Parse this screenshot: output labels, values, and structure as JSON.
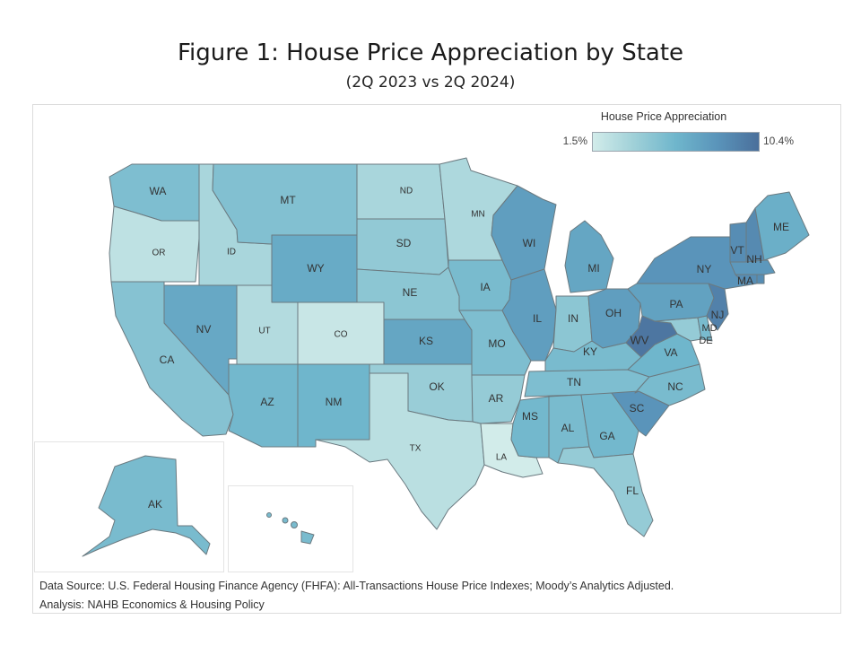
{
  "title": "Figure 1: House Price Appreciation by State",
  "subtitle": "(2Q 2023 vs 2Q 2024)",
  "legend": {
    "title": "House Price Appreciation",
    "min_label": "1.5%",
    "max_label": "10.4%",
    "min_value": 1.5,
    "max_value": 10.4,
    "color_low": "#d2ecea",
    "color_high": "#4a6f9b"
  },
  "states": [
    {
      "abbr": "WA",
      "level": 0.42
    },
    {
      "abbr": "OR",
      "level": 0.1
    },
    {
      "abbr": "CA",
      "level": 0.38
    },
    {
      "abbr": "ID",
      "level": 0.2
    },
    {
      "abbr": "NV",
      "level": 0.6
    },
    {
      "abbr": "MT",
      "level": 0.4
    },
    {
      "abbr": "WY",
      "level": 0.58
    },
    {
      "abbr": "UT",
      "level": 0.15
    },
    {
      "abbr": "AZ",
      "level": 0.48
    },
    {
      "abbr": "CO",
      "level": 0.05
    },
    {
      "abbr": "NM",
      "level": 0.5
    },
    {
      "abbr": "ND",
      "level": 0.2
    },
    {
      "abbr": "SD",
      "level": 0.32
    },
    {
      "abbr": "NE",
      "level": 0.35
    },
    {
      "abbr": "KS",
      "level": 0.62
    },
    {
      "abbr": "OK",
      "level": 0.28
    },
    {
      "abbr": "TX",
      "level": 0.12
    },
    {
      "abbr": "MN",
      "level": 0.18
    },
    {
      "abbr": "IA",
      "level": 0.45
    },
    {
      "abbr": "MO",
      "level": 0.42
    },
    {
      "abbr": "AR",
      "level": 0.3
    },
    {
      "abbr": "LA",
      "level": 0.0
    },
    {
      "abbr": "WI",
      "level": 0.68
    },
    {
      "abbr": "IL",
      "level": 0.68
    },
    {
      "abbr": "MI",
      "level": 0.62
    },
    {
      "abbr": "IN",
      "level": 0.35
    },
    {
      "abbr": "OH",
      "level": 0.68
    },
    {
      "abbr": "KY",
      "level": 0.45
    },
    {
      "abbr": "TN",
      "level": 0.42
    },
    {
      "abbr": "MS",
      "level": 0.48
    },
    {
      "abbr": "AL",
      "level": 0.45
    },
    {
      "abbr": "GA",
      "level": 0.48
    },
    {
      "abbr": "FL",
      "level": 0.3
    },
    {
      "abbr": "SC",
      "level": 0.75
    },
    {
      "abbr": "NC",
      "level": 0.45
    },
    {
      "abbr": "VA",
      "level": 0.5
    },
    {
      "abbr": "WV",
      "level": 0.95
    },
    {
      "abbr": "MD",
      "level": 0.3
    },
    {
      "abbr": "DE",
      "level": 0.45
    },
    {
      "abbr": "PA",
      "level": 0.65
    },
    {
      "abbr": "NJ",
      "level": 0.88
    },
    {
      "abbr": "NY",
      "level": 0.75
    },
    {
      "abbr": "CT",
      "level": 0.8
    },
    {
      "abbr": "RI",
      "level": 0.8
    },
    {
      "abbr": "MA",
      "level": 0.72
    },
    {
      "abbr": "VT",
      "level": 0.8
    },
    {
      "abbr": "NH",
      "level": 0.82
    },
    {
      "abbr": "ME",
      "level": 0.55
    },
    {
      "abbr": "AK",
      "level": 0.45
    },
    {
      "abbr": "HI",
      "level": 0.45
    }
  ],
  "source_line1": "Data Source: U.S. Federal Housing Finance Agency (FHFA): All-Transactions House Price Indexes; Moody’s Analytics Adjusted.",
  "source_line2": "Analysis: NAHB Economics & Housing Policy"
}
